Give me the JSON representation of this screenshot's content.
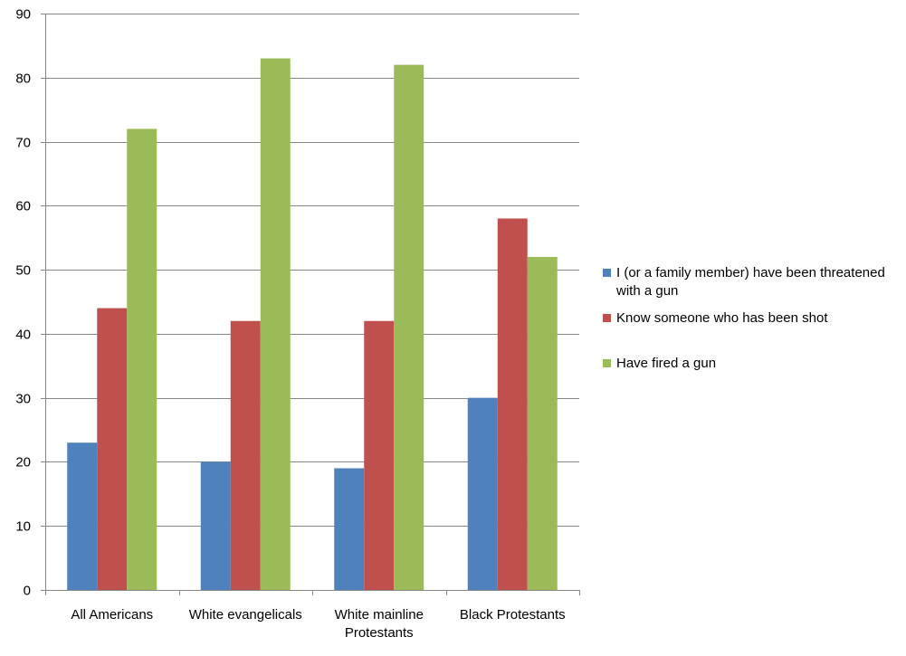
{
  "chart_data": {
    "type": "bar",
    "categories": [
      [
        "All Americans"
      ],
      [
        "White evangelicals"
      ],
      [
        "White mainline",
        "Protestants"
      ],
      [
        "Black Protestants"
      ]
    ],
    "series": [
      {
        "name": "I (or a family member) have been threatened with a gun",
        "color": "#4F81BD",
        "values": [
          23,
          20,
          19,
          30
        ]
      },
      {
        "name": "Know someone who has been shot",
        "color": "#C0504D",
        "values": [
          44,
          42,
          42,
          58
        ]
      },
      {
        "name": "Have fired a gun",
        "color": "#9BBB59",
        "values": [
          72,
          83,
          82,
          52
        ]
      }
    ],
    "ylim": [
      0,
      90
    ],
    "yticks": [
      0,
      10,
      20,
      30,
      40,
      50,
      60,
      70,
      80,
      90
    ],
    "grid": true,
    "legend_position": "right",
    "title": "",
    "xlabel": "",
    "ylabel": ""
  }
}
